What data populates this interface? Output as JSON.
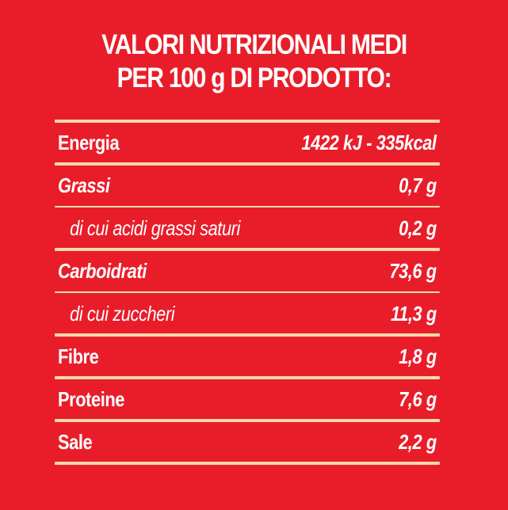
{
  "title": {
    "line1": "VALORI NUTRIZIONALI MEDI",
    "line2": "PER 100 g DI PRODOTTO:"
  },
  "rows": [
    {
      "label": "Energia",
      "value": "1422 kJ - 335kcal"
    },
    {
      "label": "Grassi",
      "value": "0,7 g"
    },
    {
      "label": "di cui acidi grassi saturi",
      "value": "0,2 g"
    },
    {
      "label": "Carboidrati",
      "value": "73,6 g"
    },
    {
      "label": "di cui zuccheri",
      "value": "11,3 g"
    },
    {
      "label": "Fibre",
      "value": "1,8 g"
    },
    {
      "label": "Proteine",
      "value": "7,6 g"
    },
    {
      "label": "Sale",
      "value": "2,2 g"
    }
  ],
  "colors": {
    "background": "#e91d2a",
    "text": "#ffffff",
    "rule": "#f6d9ad"
  }
}
